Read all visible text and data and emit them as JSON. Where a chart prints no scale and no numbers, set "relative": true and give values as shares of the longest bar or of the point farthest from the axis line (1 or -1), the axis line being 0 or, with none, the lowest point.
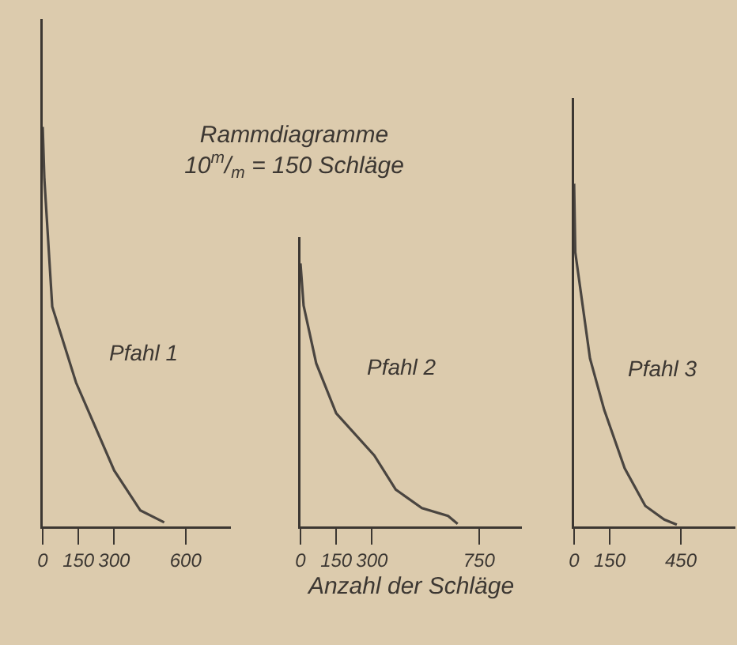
{
  "chart_data": [
    {
      "type": "line",
      "relative": true,
      "x": [
        0,
        7,
        40,
        140,
        300,
        410,
        510
      ],
      "xlim": [
        0,
        790
      ],
      "xticks": [
        0,
        150,
        300,
        600
      ],
      "series": [
        {
          "color": "#4a4540",
          "values": [
            1,
            0.87,
            0.55,
            0.36,
            0.14,
            0.04,
            0.01
          ]
        }
      ],
      "annotations": [
        "Pfahl 1"
      ],
      "grid": false,
      "marker": "none",
      "line_style": "solid"
    },
    {
      "type": "line",
      "relative": true,
      "title": "Rammdiagramme",
      "subtitle": "10$^{m}$/$_{m}$ = 150 Schläge",
      "xlabel": "Anzahl der Schläge",
      "x": [
        0,
        13,
        66,
        150,
        310,
        400,
        510,
        620,
        660
      ],
      "xlim": [
        0,
        930
      ],
      "xticks": [
        0,
        150,
        300,
        750
      ],
      "series": [
        {
          "color": "#4a4540",
          "values": [
            1,
            0.84,
            0.62,
            0.43,
            0.27,
            0.14,
            0.07,
            0.04,
            0.01
          ]
        }
      ],
      "annotations": [
        "Pfahl 2"
      ],
      "grid": false,
      "marker": "none",
      "line_style": "solid"
    },
    {
      "type": "line",
      "relative": true,
      "x": [
        0,
        5,
        67,
        127,
        213,
        300,
        380,
        433
      ],
      "xlim": [
        0,
        680
      ],
      "xticks": [
        0,
        150,
        450
      ],
      "series": [
        {
          "color": "#4a4540",
          "values": [
            1,
            0.8,
            0.49,
            0.34,
            0.17,
            0.06,
            0.02,
            0.005
          ]
        }
      ],
      "annotations": [
        "Pfahl 3"
      ],
      "grid": false,
      "marker": "none",
      "line_style": "solid"
    }
  ]
}
